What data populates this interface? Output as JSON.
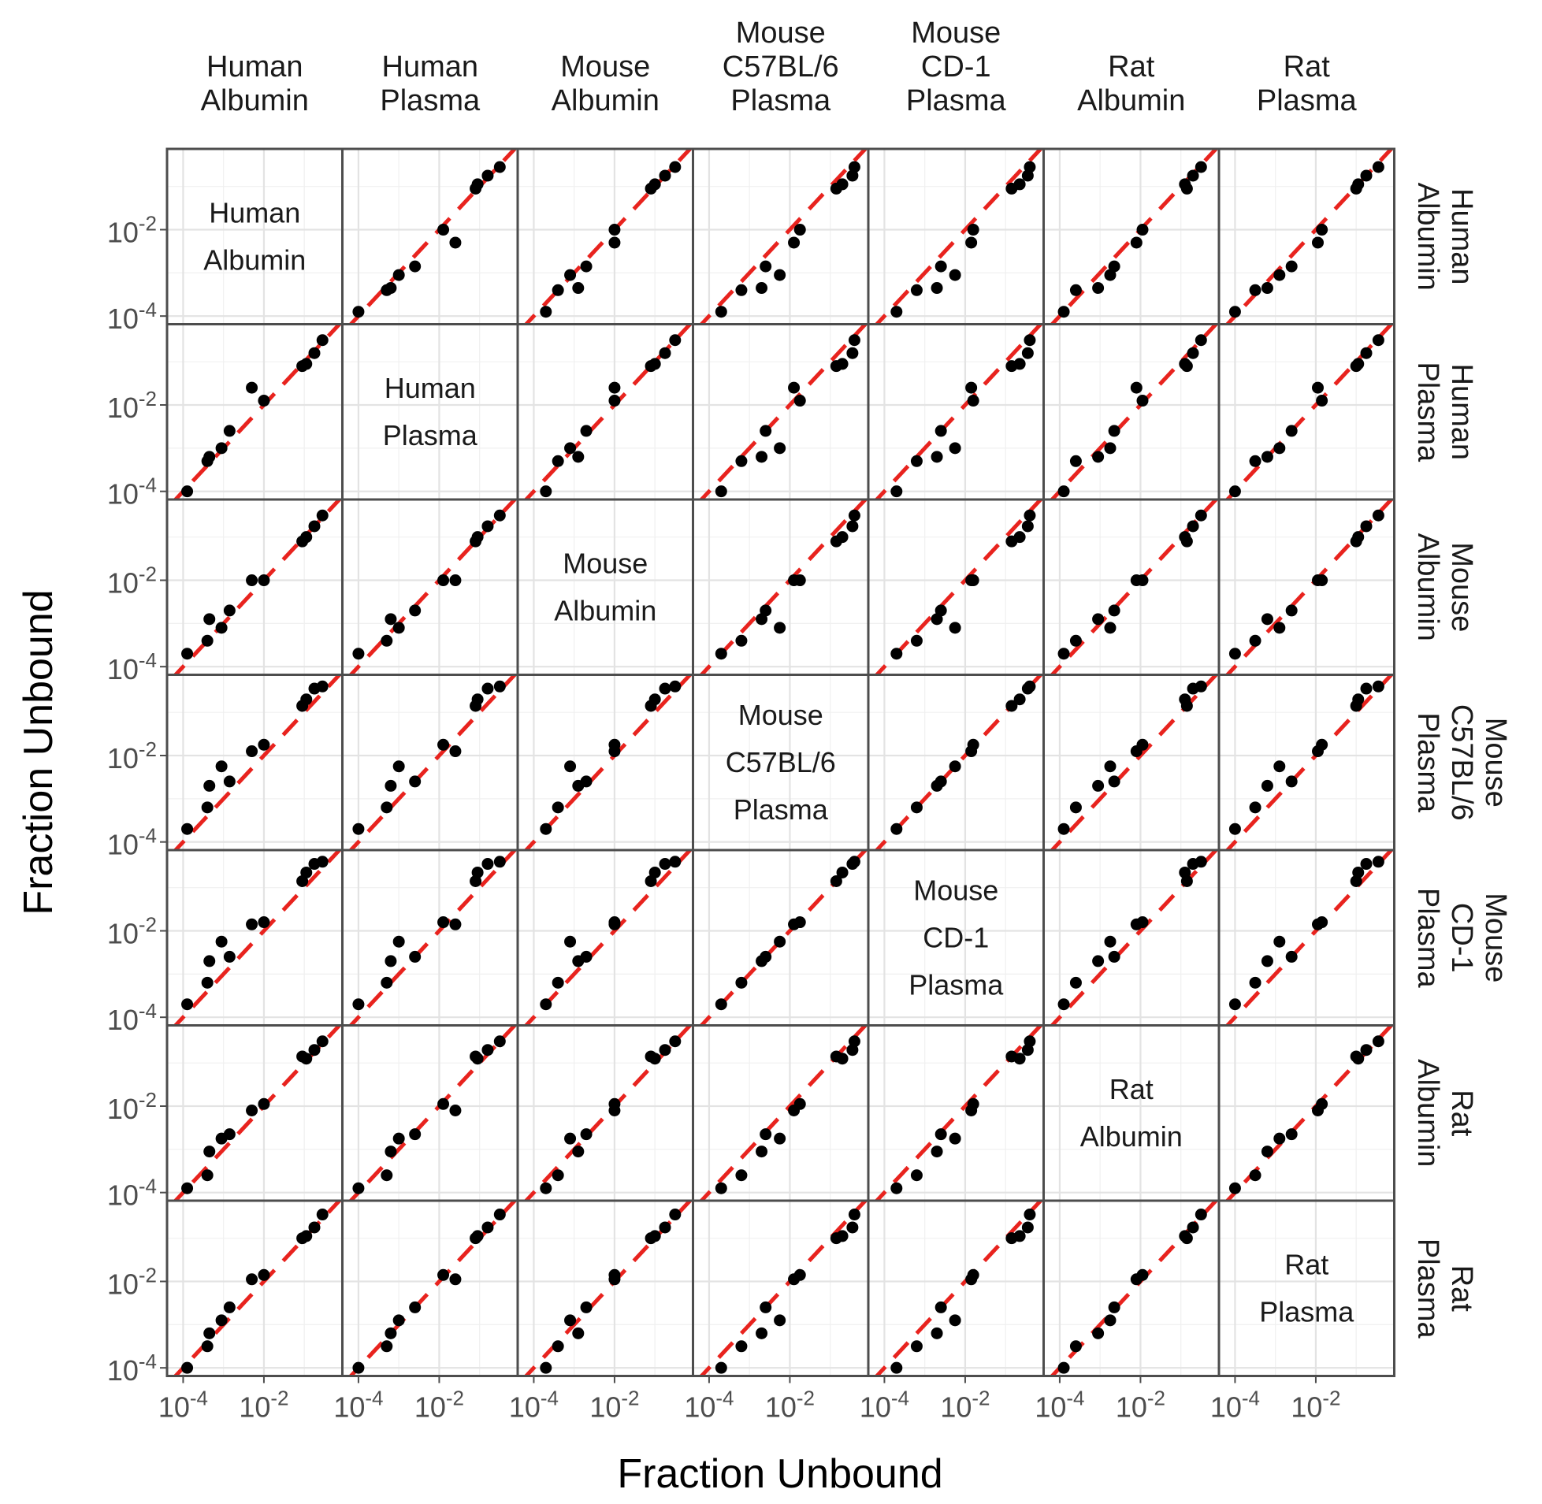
{
  "figure": {
    "xlabel": "Fraction Unbound",
    "ylabel": "Fraction Unbound",
    "tick_labels": [
      {
        "base": "10",
        "exp": "-4"
      },
      {
        "base": "10",
        "exp": "-2"
      }
    ],
    "colors": {
      "diagonal_line": "#e8231e",
      "points": "#000000",
      "panel_border": "#4d4d4d",
      "grid_major": "#e3e3e3",
      "grid_minor": "#f0f0f0",
      "text": "#4d4d4d",
      "strip_text": "#1a1a1a",
      "title_text": "#000000"
    }
  },
  "columns": [
    {
      "label_lines": [
        "Human",
        "Albumin"
      ]
    },
    {
      "label_lines": [
        "Human",
        "Plasma"
      ]
    },
    {
      "label_lines": [
        "Mouse",
        "Albumin"
      ]
    },
    {
      "label_lines": [
        "Mouse",
        "C57BL/6",
        "Plasma"
      ]
    },
    {
      "label_lines": [
        "Mouse",
        "CD-1",
        "Plasma"
      ]
    },
    {
      "label_lines": [
        "Rat",
        "Albumin"
      ]
    },
    {
      "label_lines": [
        "Rat",
        "Plasma"
      ]
    }
  ],
  "rows": [
    {
      "label_lines": [
        "Human",
        "Albumin"
      ]
    },
    {
      "label_lines": [
        "Human",
        "Plasma"
      ]
    },
    {
      "label_lines": [
        "Mouse",
        "Albumin"
      ]
    },
    {
      "label_lines": [
        "Mouse",
        "C57BL/6",
        "Plasma"
      ]
    },
    {
      "label_lines": [
        "Mouse",
        "CD-1",
        "Plasma"
      ]
    },
    {
      "label_lines": [
        "Rat",
        "Albumin"
      ]
    },
    {
      "label_lines": [
        "Rat",
        "Plasma"
      ]
    }
  ],
  "chart_data": {
    "type": "scatter",
    "layout": "scatterplot matrix (7 x 7); diagonal panels show the variable name",
    "variables": [
      "Human Albumin",
      "Human Plasma",
      "Mouse Albumin",
      "Mouse C57BL/6 Plasma",
      "Mouse CD-1 Plasma",
      "Rat Albumin",
      "Rat Plasma"
    ],
    "xlabel": "Fraction Unbound",
    "ylabel": "Fraction Unbound",
    "x_scale": "log10",
    "y_scale": "log10",
    "xlim": [
      5e-05,
      0.7
    ],
    "ylim": [
      8e-05,
      0.6
    ],
    "ticks": [
      0.0001,
      0.01
    ],
    "reference_line": "identity (y = x), red dashed",
    "grid": true,
    "compounds_log10_fu": {
      "Human Albumin": [
        -3.9,
        -3.4,
        -3.35,
        -3.05,
        -2.85,
        -2.0,
        -2.3,
        -1.05,
        -0.95,
        -0.75,
        -0.55
      ],
      "Human Plasma": [
        -4.0,
        -3.3,
        -3.2,
        -3.0,
        -2.6,
        -1.9,
        -1.6,
        -1.1,
        -1.05,
        -0.8,
        -0.5
      ],
      "Mouse Albumin": [
        -3.7,
        -3.4,
        -2.9,
        -3.1,
        -2.7,
        -2.0,
        -2.0,
        -1.1,
        -1.0,
        -0.75,
        -0.5
      ],
      "Mouse C57BL/6 Plasma": [
        -3.7,
        -3.2,
        -2.7,
        -2.25,
        -2.6,
        -1.75,
        -1.9,
        -0.85,
        -0.7,
        -0.45,
        -0.4
      ],
      "Mouse CD-1 Plasma": [
        -3.7,
        -3.2,
        -2.7,
        -2.25,
        -2.6,
        -1.8,
        -1.85,
        -0.85,
        -0.65,
        -0.45,
        -0.4
      ],
      "Rat Albumin": [
        -3.9,
        -3.6,
        -3.05,
        -2.75,
        -2.65,
        -1.95,
        -2.1,
        -0.85,
        -0.9,
        -0.7,
        -0.5
      ],
      "Rat Plasma": [
        -4.0,
        -3.5,
        -3.2,
        -2.9,
        -2.6,
        -1.85,
        -1.95,
        -1.0,
        -0.95,
        -0.75,
        -0.45
      ]
    }
  }
}
